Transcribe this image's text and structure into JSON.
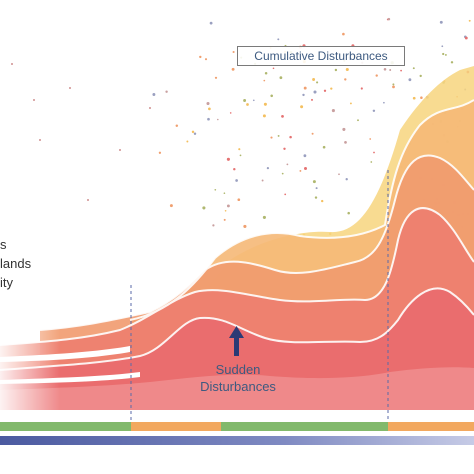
{
  "labels": {
    "cumulative": "Cumulative Disturbances",
    "sudden_line1": "Sudden",
    "sudden_line2": "Disturbances",
    "left_fragment_1": "s",
    "left_fragment_2": "lands",
    "left_fragment_3": "ity"
  },
  "colors": {
    "background": "#ffffff",
    "layer_yellow": "#f7d57e",
    "layer_light_orange": "#f5b877",
    "layer_orange": "#f19a6e",
    "layer_salmon": "#ee7f6f",
    "layer_red": "#e96b6e",
    "layer_base": "#ef8b8b",
    "label_text": "#3d5a80",
    "arrow": "#2b3a75",
    "bar_green": "#82b96c",
    "bar_orange": "#f2a85f",
    "gradient_start": "#4b5aa0",
    "gradient_end": "#c6cbe6"
  },
  "timeline_bar": [
    "green",
    "orange",
    "green",
    "orange"
  ],
  "icons": {
    "arrow": "arrow-up-icon"
  }
}
